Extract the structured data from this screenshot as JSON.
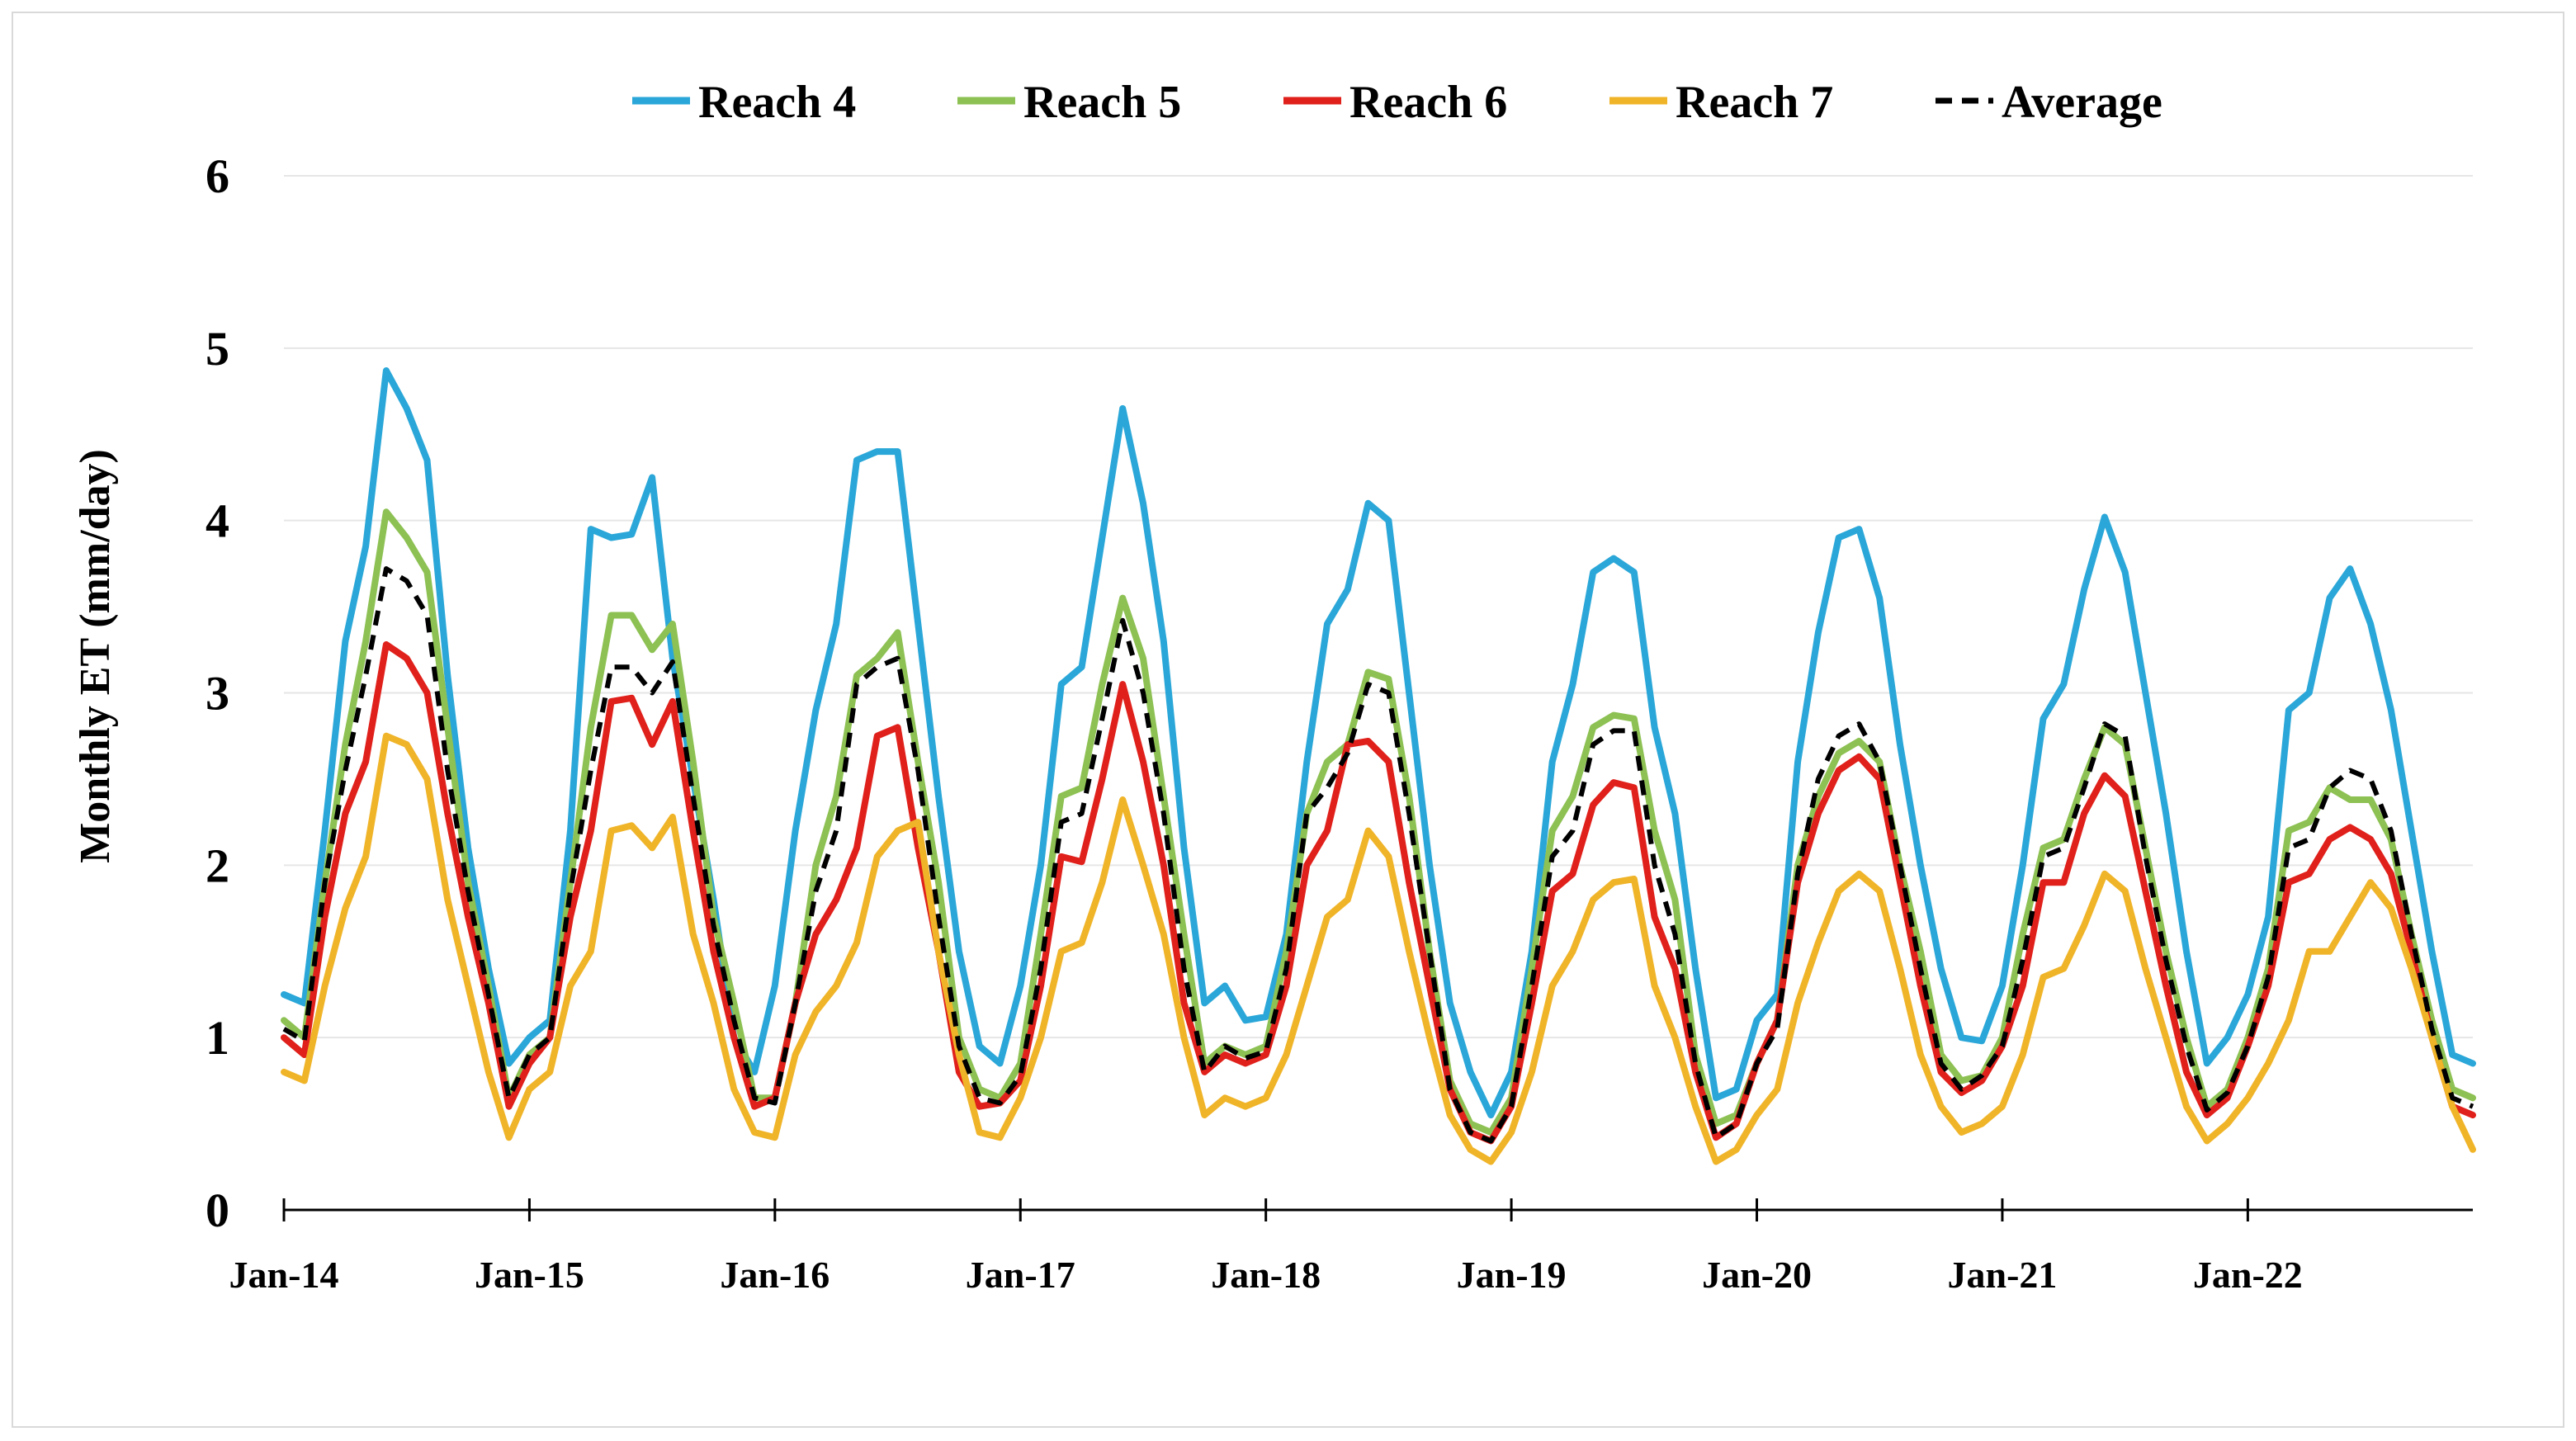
{
  "chart_data": {
    "type": "line",
    "title": "",
    "xlabel": "",
    "ylabel": "Monthly ET (mm/day)",
    "ylim": [
      0,
      6
    ],
    "yticks": [
      "0",
      "1",
      "2",
      "3",
      "4",
      "5",
      "6"
    ],
    "grid": true,
    "legend_position": "top",
    "x_start": "Jan-14",
    "n_months": 108,
    "x_tick_labels": [
      "Jan-14",
      "Jan-15",
      "Jan-16",
      "Jan-17",
      "Jan-18",
      "Jan-19",
      "Jan-20",
      "Jan-21",
      "Jan-22"
    ],
    "x_tick_month_index": [
      0,
      12,
      24,
      36,
      48,
      60,
      72,
      84,
      96
    ],
    "series": [
      {
        "name": "Reach 4",
        "color": "#2aa7d8",
        "style": "solid",
        "values": [
          1.25,
          1.2,
          2.2,
          3.3,
          3.85,
          4.87,
          4.65,
          4.35,
          3.1,
          2.1,
          1.4,
          0.85,
          1.0,
          1.1,
          2.2,
          3.95,
          3.9,
          3.92,
          4.25,
          3.2,
          2.5,
          1.8,
          1.0,
          0.8,
          1.3,
          2.2,
          2.9,
          3.4,
          4.35,
          4.4,
          4.4,
          3.4,
          2.4,
          1.5,
          0.95,
          0.85,
          1.3,
          2.0,
          3.05,
          3.15,
          3.9,
          4.65,
          4.1,
          3.3,
          2.1,
          1.2,
          1.3,
          1.1,
          1.12,
          1.6,
          2.6,
          3.4,
          3.6,
          4.1,
          4.0,
          3.0,
          2.0,
          1.2,
          0.8,
          0.55,
          0.8,
          1.5,
          2.6,
          3.05,
          3.7,
          3.78,
          3.7,
          2.8,
          2.3,
          1.4,
          0.65,
          0.7,
          1.1,
          1.25,
          2.6,
          3.35,
          3.9,
          3.95,
          3.55,
          2.7,
          2.0,
          1.4,
          1.0,
          0.98,
          1.3,
          2.0,
          2.85,
          3.05,
          3.6,
          4.02,
          3.7,
          3.0,
          2.3,
          1.5,
          0.85,
          1.0,
          1.25,
          1.7,
          2.9,
          3.0,
          3.55,
          3.72,
          3.4,
          2.9,
          2.2,
          1.5,
          0.9,
          0.85
        ]
      },
      {
        "name": "Reach 5",
        "color": "#8dc153",
        "style": "solid",
        "values": [
          1.1,
          1.0,
          1.9,
          2.7,
          3.3,
          4.05,
          3.9,
          3.7,
          2.8,
          1.9,
          1.3,
          0.65,
          0.9,
          1.0,
          1.9,
          2.8,
          3.45,
          3.45,
          3.25,
          3.4,
          2.6,
          1.7,
          1.2,
          0.65,
          0.65,
          1.2,
          2.0,
          2.4,
          3.1,
          3.2,
          3.35,
          2.6,
          1.9,
          1.0,
          0.7,
          0.65,
          0.85,
          1.6,
          2.4,
          2.45,
          3.05,
          3.55,
          3.2,
          2.4,
          1.6,
          0.85,
          0.95,
          0.9,
          0.95,
          1.5,
          2.3,
          2.6,
          2.7,
          3.12,
          3.08,
          2.4,
          1.5,
          0.75,
          0.5,
          0.45,
          0.65,
          1.4,
          2.2,
          2.4,
          2.8,
          2.87,
          2.85,
          2.2,
          1.8,
          0.9,
          0.5,
          0.55,
          0.85,
          1.1,
          2.0,
          2.4,
          2.65,
          2.72,
          2.6,
          2.0,
          1.5,
          0.9,
          0.75,
          0.78,
          1.0,
          1.6,
          2.1,
          2.15,
          2.5,
          2.8,
          2.7,
          2.1,
          1.5,
          1.0,
          0.6,
          0.7,
          1.0,
          1.4,
          2.2,
          2.25,
          2.45,
          2.38,
          2.38,
          2.15,
          1.6,
          1.1,
          0.7,
          0.65
        ]
      },
      {
        "name": "Reach 6",
        "color": "#e0201b",
        "style": "solid",
        "values": [
          1.0,
          0.9,
          1.7,
          2.3,
          2.6,
          3.28,
          3.2,
          3.0,
          2.3,
          1.7,
          1.2,
          0.6,
          0.85,
          1.0,
          1.7,
          2.2,
          2.95,
          2.97,
          2.7,
          2.95,
          2.2,
          1.5,
          1.0,
          0.6,
          0.65,
          1.2,
          1.6,
          1.8,
          2.1,
          2.75,
          2.8,
          2.1,
          1.5,
          0.8,
          0.6,
          0.62,
          0.75,
          1.3,
          2.05,
          2.02,
          2.5,
          3.05,
          2.6,
          2.0,
          1.2,
          0.8,
          0.9,
          0.85,
          0.9,
          1.3,
          2.0,
          2.2,
          2.7,
          2.72,
          2.6,
          1.9,
          1.3,
          0.7,
          0.45,
          0.4,
          0.6,
          1.2,
          1.85,
          1.95,
          2.35,
          2.48,
          2.45,
          1.7,
          1.4,
          0.8,
          0.42,
          0.5,
          0.85,
          1.1,
          1.9,
          2.3,
          2.55,
          2.63,
          2.5,
          1.9,
          1.3,
          0.8,
          0.68,
          0.75,
          0.95,
          1.3,
          1.9,
          1.9,
          2.3,
          2.52,
          2.4,
          1.85,
          1.3,
          0.8,
          0.55,
          0.65,
          0.95,
          1.3,
          1.9,
          1.95,
          2.15,
          2.22,
          2.15,
          1.95,
          1.5,
          1.0,
          0.6,
          0.55
        ]
      },
      {
        "name": "Reach 7",
        "color": "#f0b429",
        "style": "solid",
        "values": [
          0.8,
          0.75,
          1.3,
          1.75,
          2.05,
          2.75,
          2.7,
          2.5,
          1.8,
          1.3,
          0.8,
          0.42,
          0.7,
          0.8,
          1.3,
          1.5,
          2.2,
          2.23,
          2.1,
          2.28,
          1.6,
          1.2,
          0.7,
          0.45,
          0.42,
          0.9,
          1.15,
          1.3,
          1.55,
          2.05,
          2.2,
          2.25,
          1.5,
          0.9,
          0.45,
          0.42,
          0.65,
          1.0,
          1.5,
          1.55,
          1.9,
          2.38,
          2.0,
          1.6,
          1.0,
          0.55,
          0.65,
          0.6,
          0.65,
          0.9,
          1.3,
          1.7,
          1.8,
          2.2,
          2.05,
          1.5,
          1.0,
          0.55,
          0.35,
          0.28,
          0.45,
          0.8,
          1.3,
          1.5,
          1.8,
          1.9,
          1.92,
          1.3,
          1.0,
          0.6,
          0.28,
          0.35,
          0.55,
          0.7,
          1.2,
          1.55,
          1.85,
          1.95,
          1.85,
          1.4,
          0.9,
          0.6,
          0.45,
          0.5,
          0.6,
          0.9,
          1.35,
          1.4,
          1.65,
          1.95,
          1.85,
          1.4,
          1.0,
          0.6,
          0.4,
          0.5,
          0.65,
          0.85,
          1.1,
          1.5,
          1.5,
          1.7,
          1.9,
          1.75,
          1.4,
          1.0,
          0.6,
          0.35
        ]
      },
      {
        "name": "Average",
        "color": "#000000",
        "style": "dashed",
        "values": [
          1.05,
          0.98,
          1.9,
          2.55,
          3.1,
          3.72,
          3.65,
          3.45,
          2.55,
          1.85,
          1.25,
          0.65,
          0.9,
          1.0,
          1.85,
          2.55,
          3.15,
          3.15,
          3.0,
          3.18,
          2.4,
          1.65,
          1.1,
          0.65,
          0.62,
          1.2,
          1.85,
          2.2,
          3.05,
          3.15,
          3.2,
          2.55,
          1.7,
          0.95,
          0.65,
          0.62,
          0.78,
          1.4,
          2.25,
          2.3,
          2.85,
          3.42,
          3.0,
          2.3,
          1.4,
          0.8,
          0.95,
          0.88,
          0.92,
          1.4,
          2.3,
          2.45,
          2.65,
          3.05,
          3.0,
          2.3,
          1.5,
          0.7,
          0.45,
          0.4,
          0.6,
          1.3,
          2.05,
          2.2,
          2.7,
          2.78,
          2.78,
          2.0,
          1.6,
          0.85,
          0.42,
          0.5,
          0.85,
          1.05,
          1.95,
          2.5,
          2.75,
          2.82,
          2.6,
          2.0,
          1.4,
          0.85,
          0.7,
          0.78,
          0.95,
          1.45,
          2.05,
          2.1,
          2.45,
          2.82,
          2.75,
          2.05,
          1.45,
          0.95,
          0.58,
          0.68,
          0.95,
          1.35,
          2.1,
          2.15,
          2.45,
          2.55,
          2.5,
          2.2,
          1.6,
          1.05,
          0.65,
          0.6
        ]
      }
    ]
  }
}
